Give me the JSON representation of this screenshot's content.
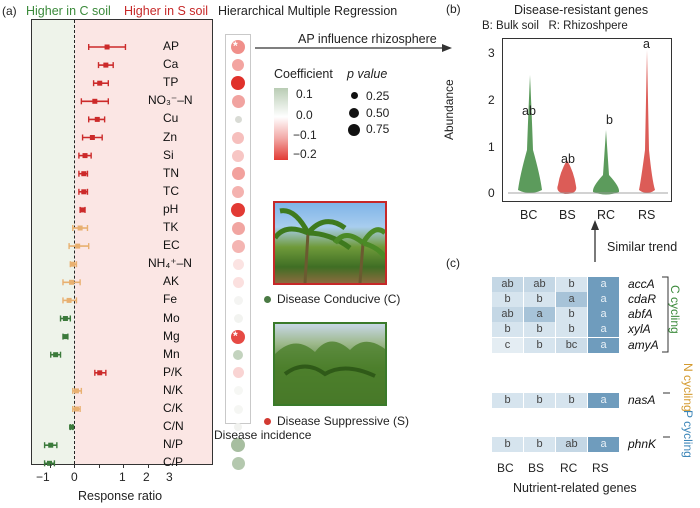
{
  "panels": {
    "a": "(a)",
    "b": "(b)",
    "c": "(c)"
  },
  "panel_a": {
    "legend_c": "Higher in C soil",
    "legend_s": "Higher in S soil",
    "title": "Hierarchical Multiple Regression",
    "xlabel": "Response ratio",
    "xticks": [
      "−1",
      "0",
      "1",
      "2",
      "3"
    ],
    "variables": [
      "AP",
      "Ca",
      "TP",
      "NO₃⁻–N",
      "Cu",
      "Zn",
      "Si",
      "TN",
      "TC",
      "pH",
      "TK",
      "EC",
      "NH₄⁺–N",
      "AK",
      "Fe",
      "Mo",
      "Mg",
      "Mn",
      "P/K",
      "N/K",
      "C/K",
      "C/N",
      "N/P",
      "C/P"
    ],
    "colors": {
      "c_green": "#3b7a3b",
      "s_red": "#cc2a2a",
      "ns_orange": "#e8b070"
    },
    "coef_column_label": "Disease incidence",
    "coef_stars": [
      "*",
      "*"
    ]
  },
  "coef_legend": {
    "title": "Coefficient",
    "ticks": [
      "0.1",
      "0.0",
      "−0.1",
      "−0.2"
    ],
    "pvalue_title": "p value",
    "pvalues": [
      "0.25",
      "0.50",
      "0.75"
    ]
  },
  "photos": {
    "conducive_label": "Disease Conducive (C)",
    "suppressive_label": "Disease Suppressive (S)"
  },
  "arrow_label": "AP influence rhizosphere",
  "panel_b": {
    "title": "Disease-resistant genes",
    "subtitle": "B: Bulk soil   R: Rhizoshpere",
    "ylabel": "Abundance",
    "yticks": [
      "0",
      "1",
      "2",
      "3"
    ],
    "categories": [
      "BC",
      "BS",
      "RC",
      "RS"
    ],
    "letters": [
      "ab",
      "ab",
      "b",
      "a"
    ]
  },
  "trend_label": "Similar trend",
  "panel_c": {
    "genes": [
      "accA",
      "cdaR",
      "abfA",
      "xylA",
      "amyA",
      "nasA",
      "phnK"
    ],
    "letters": [
      [
        "ab",
        "ab",
        "b",
        "a"
      ],
      [
        "b",
        "b",
        "a",
        "a"
      ],
      [
        "ab",
        "a",
        "b",
        "a"
      ],
      [
        "b",
        "b",
        "b",
        "a"
      ],
      [
        "c",
        "b",
        "bc",
        "a"
      ],
      [
        "b",
        "b",
        "b",
        "a"
      ],
      [
        "b",
        "b",
        "ab",
        "a"
      ]
    ],
    "columns": [
      "BC",
      "BS",
      "RC",
      "RS"
    ],
    "xlabel": "Nutrient-related genes",
    "group_c": "C cycling",
    "group_n": "N cycling",
    "group_p": "P cycling"
  }
}
